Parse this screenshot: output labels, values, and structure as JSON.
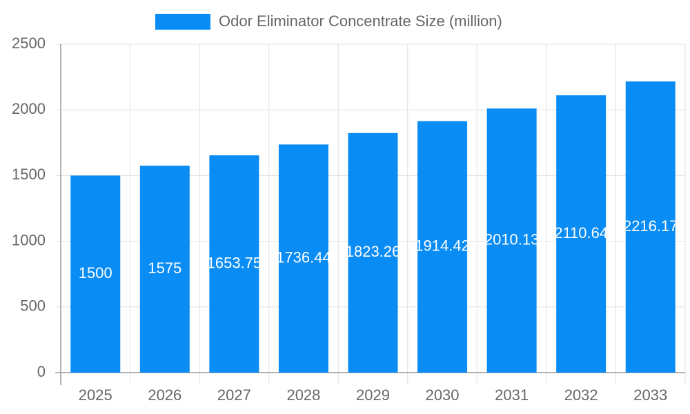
{
  "chart_data": {
    "type": "bar",
    "legend": "Odor Eliminator Concentrate Size (million)",
    "categories": [
      "2025",
      "2026",
      "2027",
      "2028",
      "2029",
      "2030",
      "2031",
      "2032",
      "2033"
    ],
    "values": [
      1500,
      1575,
      1653.75,
      1736.44,
      1823.26,
      1914.42,
      2010.13,
      2110.64,
      2216.17
    ],
    "color": "#0a8cf5",
    "ylim": [
      0,
      2500
    ],
    "yticks": [
      0,
      500,
      1000,
      1500,
      2000,
      2500
    ],
    "grid": true
  }
}
